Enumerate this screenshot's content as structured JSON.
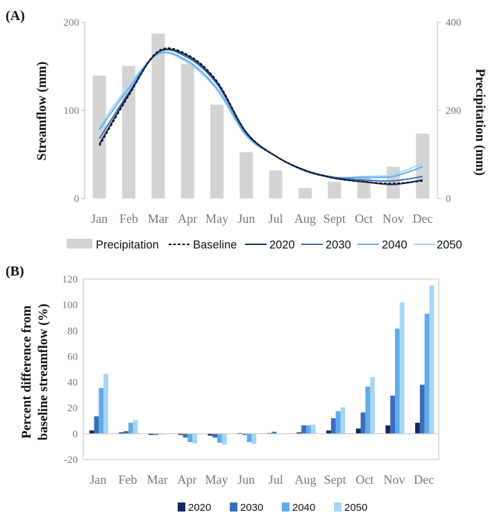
{
  "colors": {
    "precipitation": "#d4d4d4",
    "baseline": "#111111",
    "y2020": "#17285e",
    "y2030": "#3a6dbb",
    "y2040": "#5eacec",
    "y2050": "#a6d6f5",
    "axis": "#bfbfbf"
  },
  "chart_data": [
    {
      "panel": "(A)",
      "type": "line",
      "categories": [
        "Jan",
        "Feb",
        "Mar",
        "Apr",
        "May",
        "Jun",
        "Jul",
        "Aug",
        "Sept",
        "Oct",
        "Nov",
        "Dec"
      ],
      "ylabel": "Streamflow (mm)",
      "y2label": "Precipitation (mm)",
      "ylim": [
        0,
        200
      ],
      "yticks": [
        "0",
        "100",
        "200"
      ],
      "y2lim": [
        0,
        400
      ],
      "y2ticks": [
        "0",
        "200",
        "400"
      ],
      "bars": {
        "name": "Precipitation",
        "axis": "right",
        "values": [
          279,
          301,
          374,
          305,
          213,
          105,
          64,
          24,
          38,
          50,
          72,
          147
        ]
      },
      "series": [
        {
          "name": "Baseline",
          "style": "dashed",
          "values": [
            60,
            117,
            167,
            163,
            133,
            75,
            48,
            32,
            23,
            19,
            17,
            20
          ]
        },
        {
          "name": "2020",
          "style": "solid",
          "values": [
            62,
            118,
            166,
            162,
            132,
            75,
            48,
            32,
            23,
            19,
            16,
            21
          ]
        },
        {
          "name": "2030",
          "style": "solid",
          "values": [
            68,
            120,
            166,
            160,
            130,
            74,
            48,
            32,
            24,
            21,
            20,
            25
          ]
        },
        {
          "name": "2040",
          "style": "solid",
          "values": [
            78,
            125,
            164,
            156,
            125,
            72,
            48,
            31,
            24,
            24,
            25,
            36
          ]
        },
        {
          "name": "2050",
          "style": "solid",
          "values": [
            82,
            128,
            164,
            154,
            123,
            71,
            48,
            31,
            24,
            25,
            27,
            40
          ]
        }
      ],
      "legend": [
        "Precipitation",
        "Baseline",
        "2020",
        "2030",
        "2040",
        "2050"
      ],
      "legend_position": "bottom",
      "grid": false
    },
    {
      "panel": "(B)",
      "type": "bar",
      "categories": [
        "Jan",
        "Feb",
        "Mar",
        "Apr",
        "May",
        "Jun",
        "Jul",
        "Aug",
        "Sept",
        "Oct",
        "Nov",
        "Dec"
      ],
      "ylabel_line1": "Percent difference from",
      "ylabel_line2": "baseline streamflow (%)",
      "ylim": [
        -20,
        120
      ],
      "yticks": [
        "-20",
        "0",
        "20",
        "40",
        "60",
        "80",
        "100",
        "120"
      ],
      "series": [
        {
          "name": "2020",
          "values": [
            2.5,
            1,
            -1,
            -1,
            -1.5,
            0.5,
            0.5,
            1,
            2.5,
            4,
            6.5,
            8.5
          ]
        },
        {
          "name": "2030",
          "values": [
            13.5,
            2,
            -1,
            -3,
            -3,
            -1,
            1.5,
            6.5,
            12,
            16.5,
            29.5,
            38
          ]
        },
        {
          "name": "2040",
          "values": [
            35.5,
            8.5,
            -0.5,
            -6.5,
            -7,
            -6.5,
            0,
            6.5,
            17.5,
            36.5,
            81.5,
            93
          ]
        },
        {
          "name": "2050",
          "values": [
            46.5,
            10.5,
            -0.5,
            -7.5,
            -8.5,
            -8,
            0,
            7,
            20.5,
            44,
            102,
            115
          ]
        }
      ],
      "legend": [
        "2020",
        "2030",
        "2040",
        "2050"
      ],
      "legend_position": "bottom",
      "grid": false
    }
  ]
}
